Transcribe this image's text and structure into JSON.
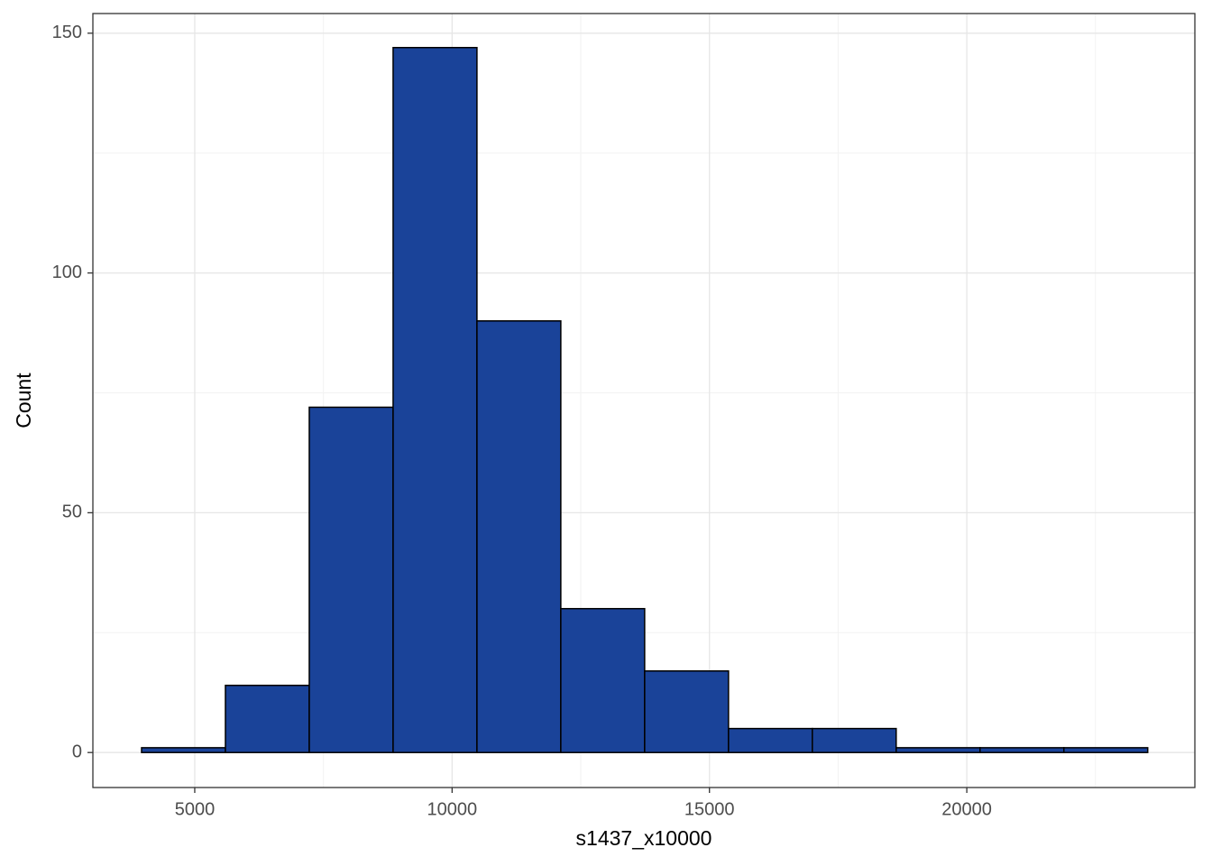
{
  "chart_data": {
    "type": "histogram",
    "x_label": "s1437_x10000",
    "y_label": "Count",
    "bins": [
      3967,
      5596,
      7225,
      8854,
      10483,
      12112,
      13741,
      15370,
      16999,
      18628,
      20257,
      21886,
      23515
    ],
    "counts": [
      1,
      14,
      72,
      147,
      90,
      30,
      17,
      5,
      5,
      1,
      1,
      1
    ],
    "color": "#1a4399",
    "edge_color": "#000000",
    "xlim": [
      3021,
      24431
    ],
    "xticks": [
      5000,
      10000,
      15000,
      20000
    ],
    "ylim": [
      -7.3,
      154.1
    ],
    "yticks": [
      0,
      50,
      100,
      150
    ],
    "grid": true
  }
}
